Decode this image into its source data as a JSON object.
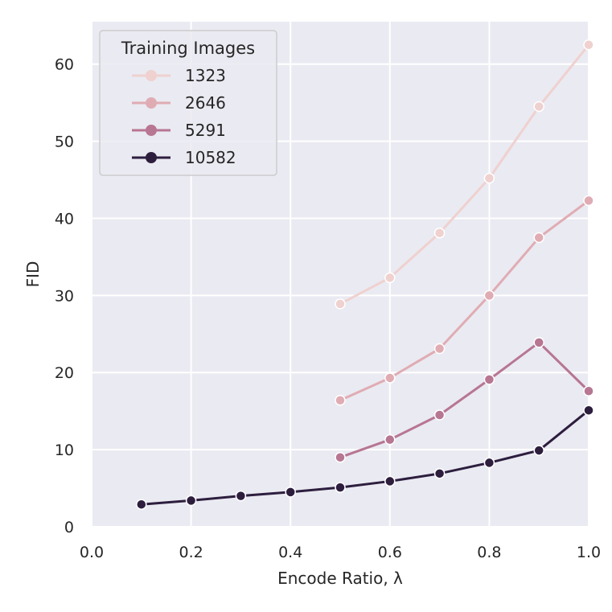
{
  "chart_data": {
    "type": "line",
    "title": "",
    "xlabel": "Encode Ratio, λ",
    "ylabel": "FID",
    "xlim": [
      0.0,
      1.0
    ],
    "ylim": [
      0,
      65.5
    ],
    "xticks": [
      0.0,
      0.2,
      0.4,
      0.6,
      0.8,
      1.0
    ],
    "xtick_labels": [
      "0.0",
      "0.2",
      "0.4",
      "0.6",
      "0.8",
      "1.0"
    ],
    "yticks": [
      0,
      10,
      20,
      30,
      40,
      50,
      60
    ],
    "ytick_labels": [
      "0",
      "10",
      "20",
      "30",
      "40",
      "50",
      "60"
    ],
    "grid": true,
    "background": "#eaeaf2",
    "legend": {
      "title": "Training Images",
      "placement": "top-left"
    },
    "series": [
      {
        "name": "1323",
        "color": "#efd1cf",
        "x": [
          0.5,
          0.6,
          0.7,
          0.8,
          0.9,
          1.0
        ],
        "y": [
          28.9,
          32.3,
          38.1,
          45.2,
          54.5,
          62.5
        ]
      },
      {
        "name": "2646",
        "color": "#e0acb3",
        "x": [
          0.5,
          0.6,
          0.7,
          0.8,
          0.9,
          1.0
        ],
        "y": [
          16.4,
          19.3,
          23.1,
          30.0,
          37.5,
          42.3
        ]
      },
      {
        "name": "5291",
        "color": "#b77692",
        "x": [
          0.5,
          0.6,
          0.7,
          0.8,
          0.9,
          1.0
        ],
        "y": [
          9.0,
          11.3,
          14.5,
          19.1,
          23.9,
          17.6
        ]
      },
      {
        "name": "10582",
        "color": "#2d1e3e",
        "x": [
          0.1,
          0.2,
          0.3,
          0.4,
          0.5,
          0.6,
          0.7,
          0.8,
          0.9,
          1.0
        ],
        "y": [
          2.9,
          3.4,
          4.0,
          4.5,
          5.1,
          5.9,
          6.9,
          8.3,
          9.9,
          15.1
        ]
      }
    ]
  }
}
